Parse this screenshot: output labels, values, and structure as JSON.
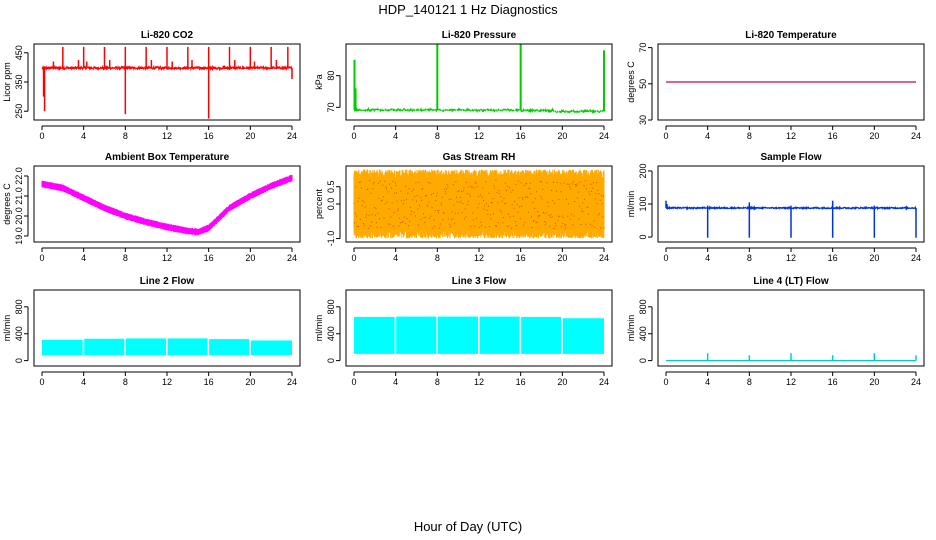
{
  "figure": {
    "title": "HDP_140121  1 Hz Diagnostics",
    "xlabel": "Hour of Day (UTC)"
  },
  "chart_data": [
    {
      "type": "line",
      "title": "Li-820 CO2",
      "ylabel": "Licor ppm",
      "color": "#ff0000",
      "xlim": [
        0,
        24
      ],
      "ylim": [
        220,
        480
      ],
      "xticks": [
        0,
        4,
        8,
        12,
        16,
        20,
        24
      ],
      "yticks": [
        250,
        350,
        450
      ],
      "baseline": 398,
      "noise": 4,
      "style": "line",
      "spikes": [
        [
          0.15,
          300
        ],
        [
          0.25,
          250
        ],
        [
          1.1,
          420
        ],
        [
          2,
          470
        ],
        [
          3.5,
          425
        ],
        [
          4,
          470
        ],
        [
          4.3,
          420
        ],
        [
          6,
          470
        ],
        [
          6.5,
          425
        ],
        [
          8,
          470
        ],
        [
          8,
          240
        ],
        [
          10,
          470
        ],
        [
          10.5,
          425
        ],
        [
          12,
          470
        ],
        [
          12.5,
          420
        ],
        [
          14,
          470
        ],
        [
          14.4,
          425
        ],
        [
          16,
          470
        ],
        [
          16,
          225
        ],
        [
          18,
          470
        ],
        [
          18.5,
          425
        ],
        [
          20,
          470
        ],
        [
          20.4,
          420
        ],
        [
          22,
          470
        ],
        [
          22.5,
          425
        ],
        [
          23.6,
          470
        ],
        [
          24,
          360
        ]
      ]
    },
    {
      "type": "line",
      "title": "Li-820 Pressure",
      "ylabel": "kPa",
      "color": "#00cc00",
      "xlim": [
        0,
        24
      ],
      "ylim": [
        66,
        90
      ],
      "xticks": [
        0,
        4,
        8,
        12,
        16,
        20,
        24
      ],
      "yticks": [
        70,
        80
      ],
      "segments": [
        [
          0.1,
          0,
          69.3
        ],
        [
          0,
          8,
          69.2
        ],
        [
          8,
          16,
          69.1
        ],
        [
          16,
          19.2,
          69.0
        ],
        [
          19.2,
          24,
          68.7
        ]
      ],
      "noise": 0.2,
      "style": "dots",
      "spikes": [
        [
          0.05,
          85
        ],
        [
          0.15,
          76
        ],
        [
          8,
          90
        ],
        [
          16,
          90
        ],
        [
          24,
          88
        ]
      ]
    },
    {
      "type": "line",
      "title": "Li-820 Temperature",
      "ylabel": "degrees C",
      "color": "#cc0066",
      "xlim": [
        0,
        24
      ],
      "ylim": [
        30,
        72
      ],
      "xticks": [
        0,
        4,
        8,
        12,
        16,
        20,
        24
      ],
      "yticks": [
        30,
        50,
        70
      ],
      "baseline": 51,
      "noise": 0,
      "style": "line",
      "spikes": []
    },
    {
      "type": "line",
      "title": "Ambient Box Temperature",
      "ylabel": "degrees C",
      "color": "#ff00ff",
      "xlim": [
        0,
        24
      ],
      "ylim": [
        18.7,
        22.5
      ],
      "xticks": [
        0,
        4,
        8,
        12,
        16,
        20,
        24
      ],
      "yticks": [
        19.0,
        20.0,
        21.0,
        22.0
      ],
      "curve": [
        [
          0,
          21.6
        ],
        [
          2,
          21.4
        ],
        [
          4,
          20.9
        ],
        [
          6,
          20.4
        ],
        [
          8,
          20.0
        ],
        [
          10,
          19.7
        ],
        [
          12,
          19.45
        ],
        [
          14,
          19.25
        ],
        [
          15,
          19.2
        ],
        [
          16,
          19.4
        ],
        [
          17,
          19.9
        ],
        [
          18,
          20.4
        ],
        [
          20,
          21.0
        ],
        [
          22,
          21.5
        ],
        [
          24,
          21.9
        ]
      ],
      "band": 0.35,
      "noise": 0.03,
      "style": "band",
      "spikes": []
    },
    {
      "type": "line",
      "title": "Gas Stream RH",
      "ylabel": "percent",
      "color": "#ffaa00",
      "accent": "#cc0000",
      "xlim": [
        0,
        24
      ],
      "ylim": [
        -1.1,
        1.1
      ],
      "xticks": [
        0,
        4,
        8,
        12,
        16,
        20,
        24
      ],
      "yticks": [
        -1.0,
        0.0,
        0.5
      ],
      "baseline": 0,
      "band": 0.7,
      "noise": 0.2,
      "style": "noiseband",
      "spikes": []
    },
    {
      "type": "line",
      "title": "Sample Flow",
      "ylabel": "ml/min",
      "color": "#0033dd",
      "xlim": [
        0,
        24
      ],
      "ylim": [
        -15,
        215
      ],
      "xticks": [
        0,
        4,
        8,
        12,
        16,
        20,
        24
      ],
      "yticks": [
        0,
        100,
        200
      ],
      "baseline": 88,
      "noise": 2,
      "style": "line",
      "spikes": [
        [
          0,
          110
        ],
        [
          0.1,
          100
        ],
        [
          4,
          -2
        ],
        [
          4,
          95
        ],
        [
          8,
          -2
        ],
        [
          8,
          105
        ],
        [
          12,
          -2
        ],
        [
          12,
          95
        ],
        [
          16,
          -2
        ],
        [
          16,
          110
        ],
        [
          20,
          -2
        ],
        [
          20,
          95
        ],
        [
          24,
          -2
        ]
      ]
    },
    {
      "type": "line",
      "title": "Line 2 Flow",
      "ylabel": "ml/min",
      "color": "#00ffff",
      "xlim": [
        0,
        24
      ],
      "ylim": [
        -80,
        1050
      ],
      "xticks": [
        0,
        4,
        8,
        12,
        16,
        20,
        24
      ],
      "yticks": [
        0,
        400,
        800
      ],
      "blocks": [
        [
          0,
          3.9,
          80,
          310
        ],
        [
          4.05,
          7.9,
          80,
          325
        ],
        [
          8.05,
          11.9,
          80,
          330
        ],
        [
          12.05,
          15.9,
          80,
          330
        ],
        [
          16.05,
          19.9,
          80,
          320
        ],
        [
          20.05,
          24,
          80,
          300
        ]
      ],
      "style": "blocks",
      "spikes": []
    },
    {
      "type": "line",
      "title": "Line 3 Flow",
      "ylabel": "ml/min",
      "color": "#00ffff",
      "xlim": [
        0,
        24
      ],
      "ylim": [
        -80,
        1050
      ],
      "xticks": [
        0,
        4,
        8,
        12,
        16,
        20,
        24
      ],
      "yticks": [
        0,
        400,
        800
      ],
      "blocks": [
        [
          0,
          3.9,
          100,
          650
        ],
        [
          4.05,
          7.9,
          100,
          655
        ],
        [
          8.05,
          11.9,
          100,
          655
        ],
        [
          12.05,
          15.9,
          100,
          655
        ],
        [
          16.05,
          19.9,
          100,
          650
        ],
        [
          20.05,
          24,
          100,
          630
        ]
      ],
      "style": "blocks",
      "spikes": []
    },
    {
      "type": "line",
      "title": "Line 4 (LT) Flow",
      "ylabel": "ml/min",
      "color": "#00cccc",
      "xlim": [
        0,
        24
      ],
      "ylim": [
        -80,
        1050
      ],
      "xticks": [
        0,
        4,
        8,
        12,
        16,
        20,
        24
      ],
      "yticks": [
        0,
        400,
        800
      ],
      "baseline": 0,
      "noise": 0,
      "style": "line",
      "spikes": [
        [
          4,
          110
        ],
        [
          8,
          80
        ],
        [
          12,
          110
        ],
        [
          16,
          80
        ],
        [
          20,
          110
        ],
        [
          24,
          80
        ]
      ]
    }
  ]
}
